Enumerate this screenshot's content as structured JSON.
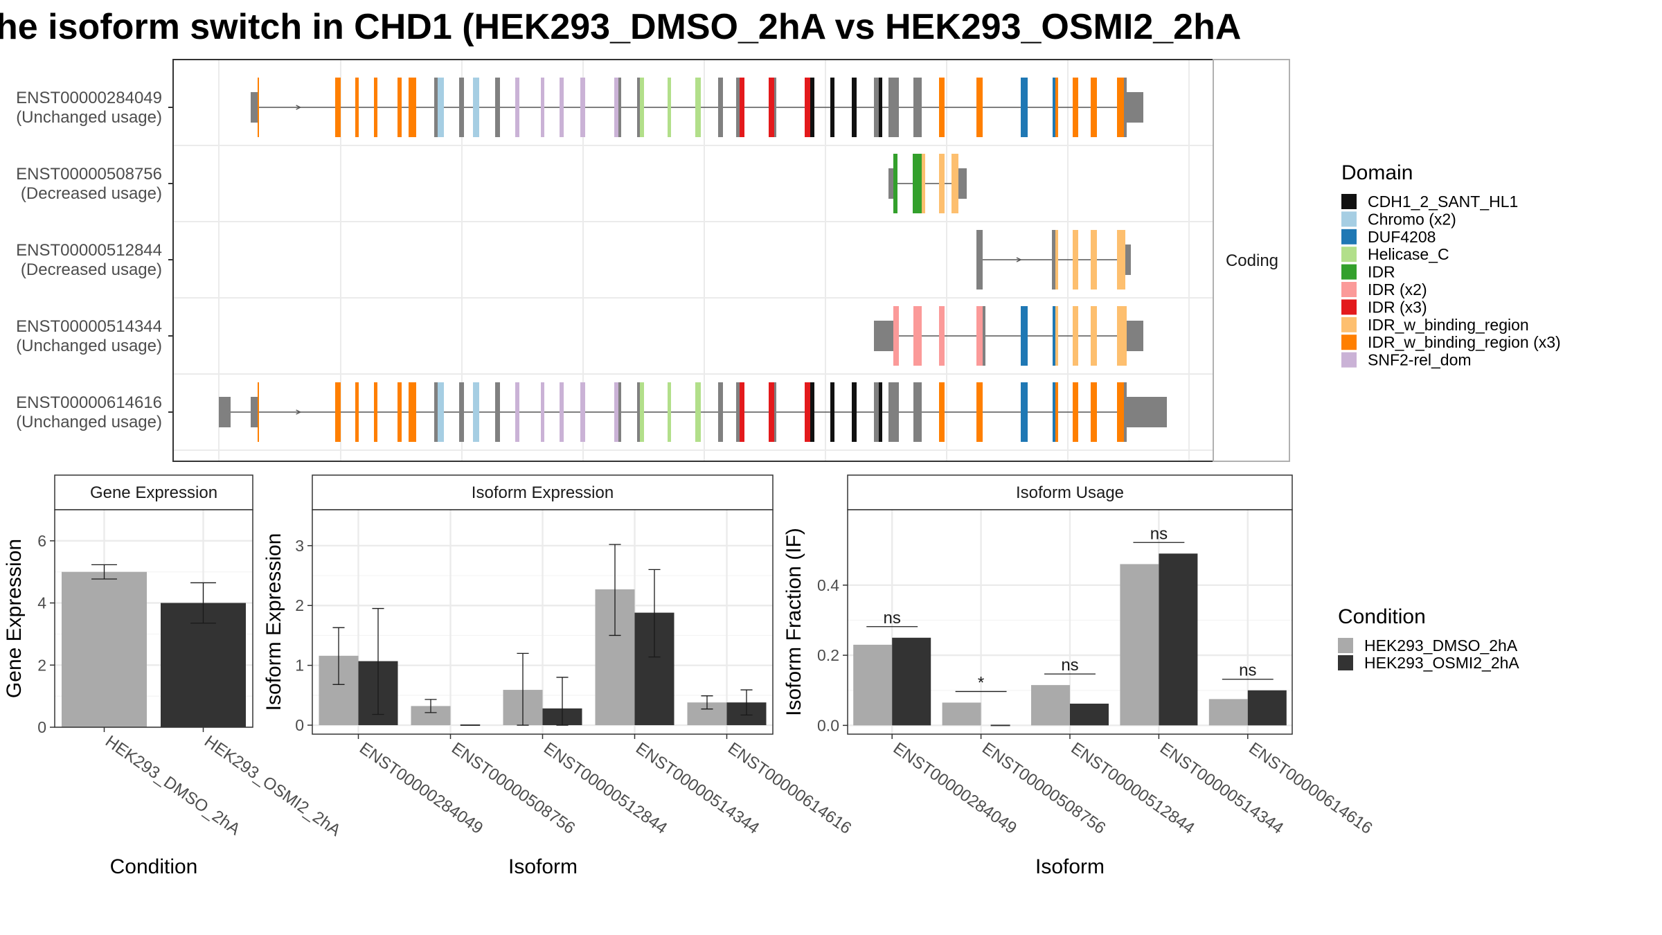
{
  "title": "he isoform switch in CHD1 (HEK293_DMSO_2hA vs HEK293_OSMI2_2hA",
  "colors": {
    "intron_line": "#555555",
    "utr": "#808080",
    "condition_dmso": "#aaaaaa",
    "condition_osmi": "#333333",
    "panel_border": "#333333",
    "grid": "#ebebeb",
    "strip_fill": "#ffffff"
  },
  "structure_panel": {
    "strip_label": "Coding",
    "transcripts": [
      {
        "id": "ENST00000284049",
        "usage": "(Unchanged usage)"
      },
      {
        "id": "ENST00000508756",
        "usage": "(Decreased usage)"
      },
      {
        "id": "ENST00000512844",
        "usage": "(Decreased usage)"
      },
      {
        "id": "ENST00000514344",
        "usage": "(Unchanged usage)"
      },
      {
        "id": "ENST00000614616",
        "usage": "(Unchanged usage)"
      }
    ]
  },
  "domain_legend": {
    "title": "Domain",
    "items": [
      {
        "label": "CDH1_2_SANT_HL1",
        "color": "#111111"
      },
      {
        "label": "Chromo (x2)",
        "color": "#a6cee3"
      },
      {
        "label": "DUF4208",
        "color": "#1f78b4"
      },
      {
        "label": "Helicase_C",
        "color": "#b2df8a"
      },
      {
        "label": "IDR",
        "color": "#33a02c"
      },
      {
        "label": "IDR (x2)",
        "color": "#fb9a99"
      },
      {
        "label": "IDR (x3)",
        "color": "#e31a1c"
      },
      {
        "label": "IDR_w_binding_region",
        "color": "#fdbf6f"
      },
      {
        "label": "IDR_w_binding_region (x3)",
        "color": "#ff7f00"
      },
      {
        "label": "SNF2-rel_dom",
        "color": "#cab2d6"
      }
    ]
  },
  "condition_legend": {
    "title": "Condition",
    "items": [
      {
        "label": "HEK293_DMSO_2hA",
        "color": "#aaaaaa"
      },
      {
        "label": "HEK293_OSMI2_2hA",
        "color": "#333333"
      }
    ]
  },
  "chart_data": [
    {
      "type": "bar",
      "title": "Gene Expression",
      "xlabel": "Condition",
      "ylabel": "Gene Expression",
      "ylim": [
        0,
        7
      ],
      "yticks": [
        0,
        2,
        4,
        6
      ],
      "categories": [
        "HEK293_DMSO_2hA",
        "HEK293_OSMI2_2hA"
      ],
      "values": [
        5.0,
        4.0
      ],
      "error_low": [
        4.77,
        3.35
      ],
      "error_high": [
        5.23,
        4.65
      ],
      "colors": [
        "#aaaaaa",
        "#333333"
      ]
    },
    {
      "type": "bar",
      "title": "Isoform Expression",
      "xlabel": "Isoform",
      "ylabel": "Isoform Expression",
      "ylim": [
        -0.15,
        3.6
      ],
      "yticks": [
        0,
        1,
        2,
        3
      ],
      "categories": [
        "ENST00000284049",
        "ENST00000508756",
        "ENST00000512844",
        "ENST00000514344",
        "ENST00000614616"
      ],
      "series": [
        {
          "name": "HEK293_DMSO_2hA",
          "values": [
            1.16,
            0.32,
            0.59,
            2.27,
            0.38
          ],
          "error_low": [
            0.68,
            0.21,
            0.0,
            1.5,
            0.27
          ],
          "error_high": [
            1.63,
            0.43,
            1.2,
            3.02,
            0.49
          ]
        },
        {
          "name": "HEK293_OSMI2_2hA",
          "values": [
            1.07,
            0.0,
            0.28,
            1.88,
            0.38
          ],
          "error_low": [
            0.18,
            0.0,
            0.0,
            1.14,
            0.17
          ],
          "error_high": [
            1.95,
            0.0,
            0.8,
            2.6,
            0.59
          ]
        }
      ]
    },
    {
      "type": "bar",
      "title": "Isoform Usage",
      "xlabel": "Isoform",
      "ylabel": "Isoform Fraction (IF)",
      "ylim": [
        -0.025,
        0.615
      ],
      "yticks": [
        "0.0",
        "0.2",
        "0.4"
      ],
      "categories": [
        "ENST00000284049",
        "ENST00000508756",
        "ENST00000512844",
        "ENST00000514344",
        "ENST00000614616"
      ],
      "series": [
        {
          "name": "HEK293_DMSO_2hA",
          "values": [
            0.23,
            0.065,
            0.115,
            0.46,
            0.075
          ]
        },
        {
          "name": "HEK293_OSMI2_2hA",
          "values": [
            0.25,
            0.0,
            0.062,
            0.49,
            0.1
          ]
        }
      ],
      "significance": [
        "ns",
        "*",
        "ns",
        "ns",
        "ns"
      ]
    }
  ]
}
